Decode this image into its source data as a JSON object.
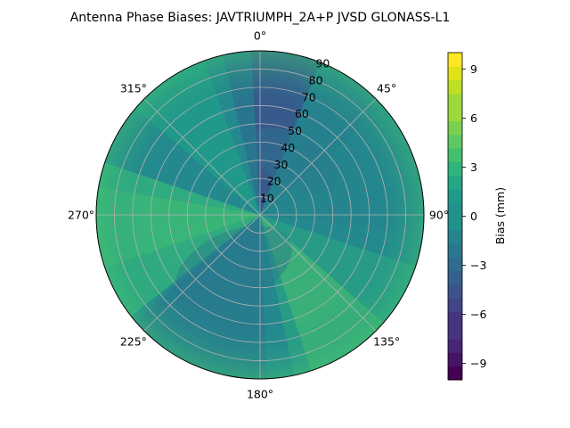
{
  "chart_data": {
    "type": "heatmap",
    "projection": "polar",
    "title": "Antenna Phase Biases: JAVTRIUMPH_2A+P JVSD GLONASS-L1",
    "angular_ticks": [
      {
        "deg": 0,
        "label": "0°"
      },
      {
        "deg": 45,
        "label": "45°"
      },
      {
        "deg": 90,
        "label": "90°"
      },
      {
        "deg": 135,
        "label": "135°"
      },
      {
        "deg": 180,
        "label": "180°"
      },
      {
        "deg": 225,
        "label": "225°"
      },
      {
        "deg": 270,
        "label": "270°"
      },
      {
        "deg": 315,
        "label": "315°"
      }
    ],
    "radial_ticks": [
      10,
      20,
      30,
      40,
      50,
      60,
      70,
      80,
      90
    ],
    "radial_range": [
      0,
      90
    ],
    "angular_direction": "clockwise",
    "zero_location": "north",
    "colormap": "viridis",
    "colorbar": {
      "label": "Bias (mm)",
      "range": [
        -10,
        10
      ],
      "levels": 24,
      "ticks": [
        -9,
        -6,
        -3,
        0,
        3,
        6,
        9
      ],
      "tick_labels": [
        "−9",
        "−6",
        "−3",
        "0",
        "3",
        "6",
        "9"
      ]
    },
    "grid": true,
    "bias_pattern_samples": [
      {
        "azimuth": 0,
        "zenith": 90,
        "bias": -5
      },
      {
        "azimuth": 20,
        "zenith": 85,
        "bias": -5
      },
      {
        "azimuth": 45,
        "zenith": 80,
        "bias": 1
      },
      {
        "azimuth": 90,
        "zenith": 85,
        "bias": 2
      },
      {
        "azimuth": 135,
        "zenith": 85,
        "bias": 3
      },
      {
        "azimuth": 160,
        "zenith": 85,
        "bias": 4
      },
      {
        "azimuth": 270,
        "zenith": 85,
        "bias": 3
      },
      {
        "azimuth": 315,
        "zenith": 60,
        "bias": 0
      },
      {
        "azimuth": 0,
        "zenith": 30,
        "bias": -1
      },
      {
        "azimuth": 180,
        "zenith": 50,
        "bias": -2
      },
      {
        "azimuth": 225,
        "zenith": 85,
        "bias": -2
      }
    ]
  }
}
